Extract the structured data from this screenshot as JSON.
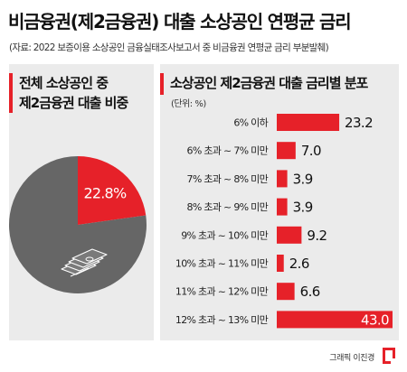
{
  "header": {
    "title": "비금융권(제2금융권) 대출 소상공인 연평균 금리",
    "source": "(자료: 2022 보증이용 소상공인 금융실태조사보고서 중 비금융권 연평균 금리 부분발췌)"
  },
  "left_panel": {
    "title_line1": "전체 소상공인 중",
    "title_line2": "제2금융권 대출 비중"
  },
  "right_panel": {
    "title": "소상공인 제2금융권 대출 금리별 분포",
    "unit": "(단위: %)"
  },
  "footer": {
    "credit": "그래픽 이진경"
  },
  "colors": {
    "accent": "#e62129",
    "pie_rest": "#666666",
    "panel_bg": "#ebebeb"
  },
  "icons": {
    "pie_center": "money-stack-icon",
    "logo": "brand-logo-icon"
  },
  "chart_data": [
    {
      "type": "pie",
      "slices": [
        {
          "value": 22.8,
          "label": "22.8%",
          "color": "#e62129"
        },
        {
          "value": 77.2,
          "color": "#666666"
        }
      ]
    },
    {
      "type": "bar",
      "orientation": "horizontal",
      "categories": [
        "6% 이하",
        "6% 초과 ~ 7% 미만",
        "7% 초과 ~ 8% 미만",
        "8% 초과 ~ 9% 미만",
        "9% 초과 ~ 10% 미만",
        "10% 초과 ~ 11% 미만",
        "11% 초과 ~ 12% 미만",
        "12% 초과 ~ 13% 미만"
      ],
      "values": [
        23.2,
        7.0,
        3.9,
        3.9,
        9.2,
        2.6,
        6.6,
        43.0
      ],
      "value_labels": [
        "23.2",
        "7.0",
        "3.9",
        "3.9",
        "9.2",
        "2.6",
        "6.6",
        "43.0"
      ],
      "xlim": [
        0,
        43.0
      ],
      "color": "#e62129"
    }
  ]
}
